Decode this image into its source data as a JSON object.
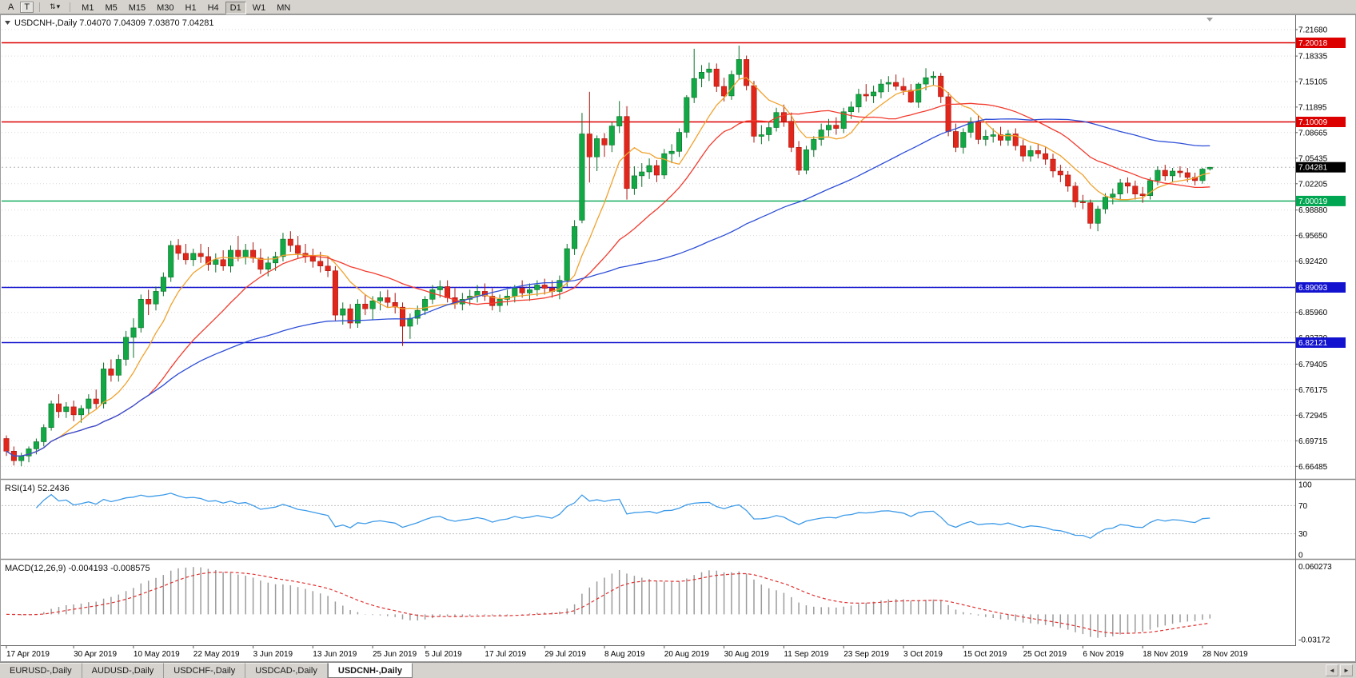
{
  "toolbar": {
    "buttons": [
      "A",
      "T"
    ],
    "dropdown_glyph": "⇅",
    "caret": "▾",
    "timeframes": [
      "M1",
      "M5",
      "M15",
      "M30",
      "H1",
      "H4",
      "D1",
      "W1",
      "MN"
    ],
    "active_timeframe": "D1"
  },
  "tabs": {
    "items": [
      "EURUSD-,Daily",
      "AUDUSD-,Daily",
      "USDCHF-,Daily",
      "USDCAD-,Daily",
      "USDCNH-,Daily"
    ],
    "active": "USDCNH-,Daily",
    "scroll_left": "◄",
    "scroll_right": "►"
  },
  "chart_data": {
    "type": "candlestick",
    "symbol": "USDCNH-",
    "timeframe": "Daily",
    "title_line": "USDCNH-,Daily  7.04070 7.04309 7.03870 7.04281",
    "last_ohlc": {
      "open": "7.04070",
      "high": "7.04309",
      "low": "7.03870",
      "close": "7.04281"
    },
    "ylim": [
      6.65,
      7.234
    ],
    "price_ticks": [
      7.2168,
      7.18335,
      7.15105,
      7.11895,
      7.08665,
      7.05435,
      7.02205,
      6.9888,
      6.9565,
      6.9242,
      6.8919,
      6.8596,
      6.8273,
      6.79405,
      6.76175,
      6.72945,
      6.69715,
      6.66485
    ],
    "levels": [
      {
        "value": 7.20018,
        "label": "7.20018",
        "color": "#dd0000"
      },
      {
        "value": 7.10009,
        "label": "7.10009",
        "color": "#dd0000"
      },
      {
        "value": 7.00019,
        "label": "7.00019",
        "color": "#00a651"
      },
      {
        "value": 6.89093,
        "label": "6.89093",
        "color": "#1313cf"
      },
      {
        "value": 6.82121,
        "label": "6.82121",
        "color": "#1313cf"
      }
    ],
    "current_price": {
      "value": 7.04281,
      "label": "7.04281",
      "badge_color": "#000000"
    },
    "moving_averages": [
      {
        "period": 8,
        "color": "#f0a22e",
        "name": "ma-fast-orange"
      },
      {
        "period": 20,
        "color": "#f23b2e",
        "name": "ma-mid-red"
      },
      {
        "period": 55,
        "color": "#2e4fd8",
        "name": "ma-slow-blue"
      }
    ],
    "colors": {
      "up": "#12a845",
      "up_stroke": "#0a7128",
      "down": "#e1271c",
      "down_stroke": "#a8140c",
      "rsi_line": "#3d9be9",
      "macd_hist": "#9b9b9b",
      "macd_signal": "#e03030",
      "grid": "#d9d9d9"
    },
    "rsi": {
      "label": "RSI(14) 52.2436",
      "period": 14,
      "value": 52.2436,
      "levels": [
        70,
        30
      ],
      "ticks": [
        {
          "v": 100,
          "label": "100"
        },
        {
          "v": 70,
          "label": "70"
        },
        {
          "v": 30,
          "label": "30"
        },
        {
          "v": 0,
          "label": "0"
        }
      ]
    },
    "macd": {
      "label": "MACD(12,26,9) -0.004193 -0.008575",
      "fast": 12,
      "slow": 26,
      "signal": 9,
      "value": -0.004193,
      "signal_value": -0.008575,
      "vlim": [
        -0.036,
        0.066
      ],
      "ticks": [
        {
          "v": 0.060273,
          "label": "0.060273"
        },
        {
          "v": -0.03172,
          "label": "-0.03172"
        }
      ]
    },
    "date_labels": [
      "17 Apr 2019",
      "30 Apr 2019",
      "10 May 2019",
      "22 May 2019",
      "3 Jun 2019",
      "13 Jun 2019",
      "25 Jun 2019",
      "5 Jul 2019",
      "17 Jul 2019",
      "29 Jul 2019",
      "8 Aug 2019",
      "20 Aug 2019",
      "30 Aug 2019",
      "11 Sep 2019",
      "23 Sep 2019",
      "3 Oct 2019",
      "15 Oct 2019",
      "25 Oct 2019",
      "6 Nov 2019",
      "18 Nov 2019",
      "28 Nov 2019"
    ],
    "date_label_indices": [
      0,
      9,
      17,
      25,
      33,
      41,
      49,
      56,
      64,
      72,
      80,
      88,
      96,
      104,
      112,
      120,
      128,
      136,
      144,
      152,
      160
    ],
    "candles": [
      [
        6.7,
        6.704,
        6.678,
        6.684
      ],
      [
        6.684,
        6.69,
        6.666,
        6.672
      ],
      [
        6.672,
        6.682,
        6.665,
        6.678
      ],
      [
        6.678,
        6.69,
        6.67,
        6.687
      ],
      [
        6.687,
        6.7,
        6.68,
        6.696
      ],
      [
        6.696,
        6.718,
        6.69,
        6.714
      ],
      [
        6.714,
        6.748,
        6.71,
        6.744
      ],
      [
        6.744,
        6.756,
        6.726,
        6.734
      ],
      [
        6.734,
        6.746,
        6.726,
        6.74
      ],
      [
        6.74,
        6.748,
        6.722,
        6.73
      ],
      [
        6.73,
        6.742,
        6.72,
        6.738
      ],
      [
        6.738,
        6.756,
        6.73,
        6.75
      ],
      [
        6.75,
        6.762,
        6.738,
        6.744
      ],
      [
        6.744,
        6.796,
        6.738,
        6.788
      ],
      [
        6.788,
        6.8,
        6.772,
        6.78
      ],
      [
        6.78,
        6.806,
        6.772,
        6.8
      ],
      [
        6.8,
        6.836,
        6.792,
        6.828
      ],
      [
        6.828,
        6.852,
        6.802,
        6.84
      ],
      [
        6.84,
        6.882,
        6.834,
        6.876
      ],
      [
        6.876,
        6.888,
        6.856,
        6.87
      ],
      [
        6.87,
        6.892,
        6.862,
        6.886
      ],
      [
        6.886,
        6.91,
        6.88,
        6.904
      ],
      [
        6.904,
        6.95,
        6.898,
        6.944
      ],
      [
        6.944,
        6.952,
        6.926,
        6.934
      ],
      [
        6.934,
        6.946,
        6.92,
        6.926
      ],
      [
        6.926,
        6.94,
        6.918,
        6.934
      ],
      [
        6.934,
        6.946,
        6.922,
        6.93
      ],
      [
        6.93,
        6.942,
        6.912,
        6.92
      ],
      [
        6.92,
        6.934,
        6.91,
        6.926
      ],
      [
        6.926,
        6.938,
        6.912,
        6.918
      ],
      [
        6.918,
        6.944,
        6.91,
        6.938
      ],
      [
        6.938,
        6.956,
        6.924,
        6.93
      ],
      [
        6.93,
        6.946,
        6.92,
        6.938
      ],
      [
        6.938,
        6.948,
        6.922,
        6.928
      ],
      [
        6.928,
        6.94,
        6.908,
        6.914
      ],
      [
        6.914,
        6.93,
        6.905,
        6.922
      ],
      [
        6.922,
        6.936,
        6.912,
        6.93
      ],
      [
        6.93,
        6.96,
        6.924,
        6.952
      ],
      [
        6.952,
        6.962,
        6.936,
        6.944
      ],
      [
        6.944,
        6.956,
        6.928,
        6.934
      ],
      [
        6.934,
        6.946,
        6.922,
        6.93
      ],
      [
        6.93,
        6.94,
        6.916,
        6.924
      ],
      [
        6.924,
        6.936,
        6.91,
        6.918
      ],
      [
        6.918,
        6.93,
        6.904,
        6.912
      ],
      [
        6.912,
        6.918,
        6.848,
        6.856
      ],
      [
        6.856,
        6.872,
        6.844,
        6.864
      ],
      [
        6.864,
        6.87,
        6.839,
        6.846
      ],
      [
        6.846,
        6.876,
        6.84,
        6.87
      ],
      [
        6.87,
        6.882,
        6.856,
        6.864
      ],
      [
        6.864,
        6.88,
        6.85,
        6.874
      ],
      [
        6.874,
        6.886,
        6.862,
        6.878
      ],
      [
        6.878,
        6.888,
        6.866,
        6.872
      ],
      [
        6.872,
        6.884,
        6.858,
        6.866
      ],
      [
        6.866,
        6.872,
        6.817,
        6.842
      ],
      [
        6.842,
        6.858,
        6.826,
        6.852
      ],
      [
        6.852,
        6.868,
        6.844,
        6.862
      ],
      [
        6.862,
        6.88,
        6.856,
        6.876
      ],
      [
        6.876,
        6.894,
        6.87,
        6.888
      ],
      [
        6.888,
        6.9,
        6.878,
        6.892
      ],
      [
        6.892,
        6.9,
        6.872,
        6.878
      ],
      [
        6.878,
        6.89,
        6.864,
        6.87
      ],
      [
        6.87,
        6.884,
        6.862,
        6.876
      ],
      [
        6.876,
        6.888,
        6.868,
        6.88
      ],
      [
        6.88,
        6.894,
        6.872,
        6.886
      ],
      [
        6.886,
        6.896,
        6.874,
        6.88
      ],
      [
        6.88,
        6.89,
        6.862,
        6.868
      ],
      [
        6.868,
        6.882,
        6.86,
        6.876
      ],
      [
        6.876,
        6.888,
        6.868,
        6.88
      ],
      [
        6.88,
        6.894,
        6.872,
        6.89
      ],
      [
        6.89,
        6.9,
        6.878,
        6.884
      ],
      [
        6.884,
        6.896,
        6.874,
        6.888
      ],
      [
        6.888,
        6.9,
        6.88,
        6.894
      ],
      [
        6.894,
        6.902,
        6.882,
        6.89
      ],
      [
        6.89,
        6.9,
        6.878,
        6.886
      ],
      [
        6.886,
        6.906,
        6.876,
        6.9
      ],
      [
        6.9,
        6.946,
        6.892,
        6.94
      ],
      [
        6.94,
        6.976,
        6.932,
        6.968
      ],
      [
        6.976,
        7.1114,
        6.972,
        7.085
      ],
      [
        7.085,
        7.1382,
        7.0235,
        7.056
      ],
      [
        7.056,
        7.083,
        7.038,
        7.079
      ],
      [
        7.079,
        7.086,
        7.056,
        7.071
      ],
      [
        7.071,
        7.1,
        7.062,
        7.095
      ],
      [
        7.095,
        7.1265,
        7.086,
        7.107
      ],
      [
        7.107,
        7.12,
        7.002,
        7.016
      ],
      [
        7.016,
        7.044,
        7.008,
        7.032
      ],
      [
        7.032,
        7.048,
        7.018,
        7.037
      ],
      [
        7.037,
        7.054,
        7.028,
        7.045
      ],
      [
        7.045,
        7.052,
        7.024,
        7.033
      ],
      [
        7.033,
        7.066,
        7.028,
        7.06
      ],
      [
        7.06,
        7.072,
        7.048,
        7.063
      ],
      [
        7.063,
        7.092,
        7.056,
        7.087
      ],
      [
        7.087,
        7.134,
        7.08,
        7.131
      ],
      [
        7.131,
        7.1926,
        7.124,
        7.155
      ],
      [
        7.155,
        7.172,
        7.144,
        7.163
      ],
      [
        7.163,
        7.175,
        7.152,
        7.167
      ],
      [
        7.167,
        7.174,
        7.138,
        7.145
      ],
      [
        7.145,
        7.156,
        7.126,
        7.133
      ],
      [
        7.133,
        7.165,
        7.128,
        7.16
      ],
      [
        7.16,
        7.1965,
        7.154,
        7.179
      ],
      [
        7.179,
        7.184,
        7.14,
        7.146
      ],
      [
        7.146,
        7.152,
        7.074,
        7.082
      ],
      [
        7.082,
        7.096,
        7.072,
        7.084
      ],
      [
        7.084,
        7.1,
        7.076,
        7.093
      ],
      [
        7.093,
        7.118,
        7.088,
        7.112
      ],
      [
        7.112,
        7.122,
        7.094,
        7.101
      ],
      [
        7.101,
        7.112,
        7.062,
        7.068
      ],
      [
        7.068,
        7.076,
        7.033,
        7.039
      ],
      [
        7.039,
        7.07,
        7.034,
        7.065
      ],
      [
        7.065,
        7.082,
        7.056,
        7.078
      ],
      [
        7.078,
        7.098,
        7.07,
        7.09
      ],
      [
        7.09,
        7.104,
        7.082,
        7.096
      ],
      [
        7.096,
        7.106,
        7.084,
        7.092
      ],
      [
        7.092,
        7.118,
        7.086,
        7.113
      ],
      [
        7.113,
        7.126,
        7.104,
        7.119
      ],
      [
        7.119,
        7.142,
        7.112,
        7.135
      ],
      [
        7.135,
        7.148,
        7.126,
        7.133
      ],
      [
        7.133,
        7.146,
        7.124,
        7.138
      ],
      [
        7.138,
        7.154,
        7.13,
        7.148
      ],
      [
        7.148,
        7.158,
        7.138,
        7.15
      ],
      [
        7.15,
        7.16,
        7.14,
        7.145
      ],
      [
        7.145,
        7.156,
        7.134,
        7.14
      ],
      [
        7.14,
        7.148,
        7.124,
        7.125
      ],
      [
        7.125,
        7.15,
        7.118,
        7.148
      ],
      [
        7.148,
        7.168,
        7.14,
        7.156
      ],
      [
        7.156,
        7.164,
        7.146,
        7.158
      ],
      [
        7.158,
        7.162,
        7.124,
        7.132
      ],
      [
        7.132,
        7.138,
        7.082,
        7.088
      ],
      [
        7.088,
        7.098,
        7.062,
        7.068
      ],
      [
        7.068,
        7.092,
        7.06,
        7.087
      ],
      [
        7.087,
        7.106,
        7.08,
        7.1
      ],
      [
        7.1,
        7.108,
        7.072,
        7.078
      ],
      [
        7.078,
        7.09,
        7.07,
        7.082
      ],
      [
        7.082,
        7.092,
        7.074,
        7.084
      ],
      [
        7.084,
        7.094,
        7.07,
        7.077
      ],
      [
        7.077,
        7.09,
        7.07,
        7.085
      ],
      [
        7.085,
        7.092,
        7.064,
        7.07
      ],
      [
        7.07,
        7.078,
        7.05,
        7.057
      ],
      [
        7.057,
        7.07,
        7.05,
        7.064
      ],
      [
        7.064,
        7.072,
        7.054,
        7.06
      ],
      [
        7.06,
        7.068,
        7.046,
        7.053
      ],
      [
        7.053,
        7.06,
        7.03,
        7.038
      ],
      [
        7.038,
        7.046,
        7.024,
        7.033
      ],
      [
        7.033,
        7.038,
        7.012,
        7.019
      ],
      [
        7.019,
        7.024,
        6.992,
        6.999
      ],
      [
        6.999,
        7.008,
        6.99,
        6.998
      ],
      [
        6.998,
        7.002,
        6.965,
        6.972
      ],
      [
        6.972,
        6.994,
        6.962,
        6.99
      ],
      [
        6.99,
        7.01,
        6.984,
        7.005
      ],
      [
        7.005,
        7.016,
        6.996,
        7.009
      ],
      [
        7.009,
        7.028,
        7.002,
        7.023
      ],
      [
        7.023,
        7.03,
        7.01,
        7.019
      ],
      [
        7.019,
        7.026,
        7.002,
        7.009
      ],
      [
        7.009,
        7.018,
        6.998,
        7.007
      ],
      [
        7.007,
        7.03,
        7.002,
        7.026
      ],
      [
        7.026,
        7.044,
        7.02,
        7.039
      ],
      [
        7.039,
        7.046,
        7.026,
        7.032
      ],
      [
        7.032,
        7.042,
        7.024,
        7.038
      ],
      [
        7.038,
        7.044,
        7.03,
        7.036
      ],
      [
        7.036,
        7.042,
        7.024,
        7.03
      ],
      [
        7.03,
        7.036,
        7.02,
        7.026
      ],
      [
        7.026,
        7.042,
        7.022,
        7.0405
      ],
      [
        7.0407,
        7.0431,
        7.0387,
        7.0428
      ]
    ]
  }
}
